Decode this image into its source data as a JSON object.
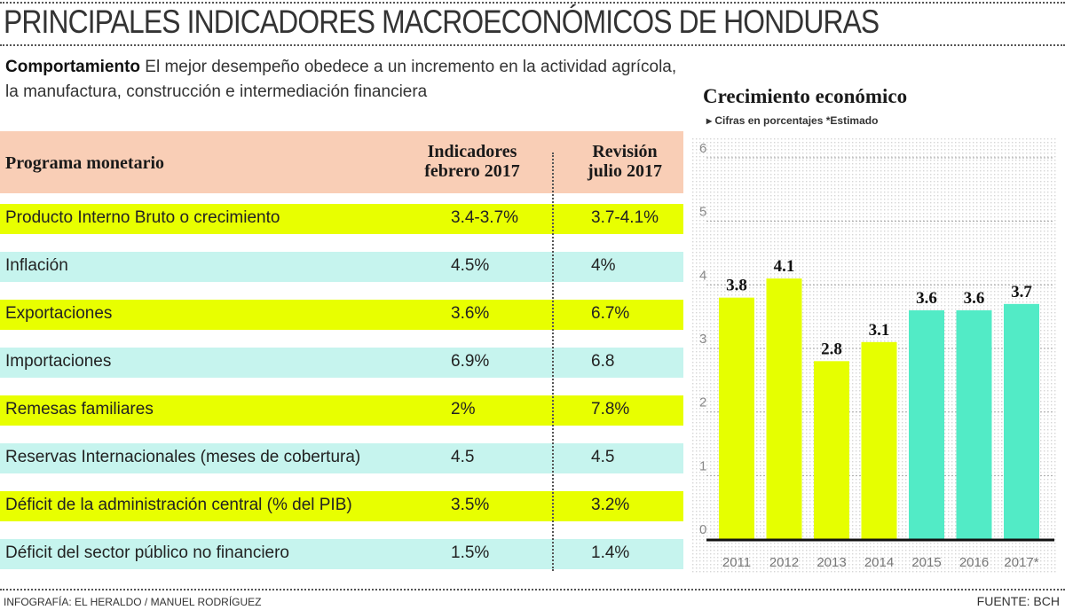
{
  "title": "PRINCIPALES INDICADORES MACROECONÓMICOS DE HONDURAS",
  "intro": {
    "lead": "Comportamiento",
    "text": " El mejor desempeño obedece a un incremento en la actividad agrícola, la manufactura, construcción e intermediación financiera"
  },
  "table": {
    "headers": [
      "Programa monetario",
      "Indicadores febrero 2017",
      "Revisión julio 2017"
    ],
    "rows": [
      [
        "Producto Interno Bruto o crecimiento",
        "3.4-3.7%",
        "3.7-4.1%"
      ],
      [
        "Inflación",
        "4.5%",
        "4%"
      ],
      [
        "Exportaciones",
        "3.6%",
        "6.7%"
      ],
      [
        "Importaciones",
        "6.9%",
        "6.8"
      ],
      [
        "Remesas familiares",
        "2%",
        "7.8%"
      ],
      [
        "Reservas Internacionales (meses de cobertura)",
        "4.5",
        "4.5"
      ],
      [
        "Déficit de la administración central (% del PIB)",
        "3.5%",
        "3.2%"
      ],
      [
        "Déficit del sector público no financiero",
        "1.5%",
        "1.4%"
      ]
    ],
    "colors": {
      "yellow": "#e8ff00",
      "cyan": "#c6f4ee",
      "header": "#f9ceb6"
    }
  },
  "credit": "INFOGRAFÍA: EL HERALDO / MANUEL RODRÍGUEZ",
  "source": "FUENTE: BCH",
  "chart_data": {
    "type": "bar",
    "title": "Crecimiento económico",
    "subtitle": "▸ Cifras en porcentajes *Estimado",
    "categories": [
      "2011",
      "2012",
      "2013",
      "2014",
      "2015",
      "2016",
      "2017*"
    ],
    "values": [
      3.8,
      4.1,
      2.8,
      3.1,
      3.6,
      3.6,
      3.7
    ],
    "labels": [
      "3.8",
      "4.1",
      "2.8",
      "3.1",
      "3.6",
      "3.6",
      "3.7"
    ],
    "colors": [
      "#e6ff00",
      "#e6ff00",
      "#e6ff00",
      "#e6ff00",
      "#52ebc6",
      "#52ebc6",
      "#52ebc6"
    ],
    "ylim": [
      0,
      6
    ],
    "yticks": [
      "0",
      "1",
      "2",
      "3",
      "4",
      "5",
      "6"
    ],
    "grid": true
  }
}
